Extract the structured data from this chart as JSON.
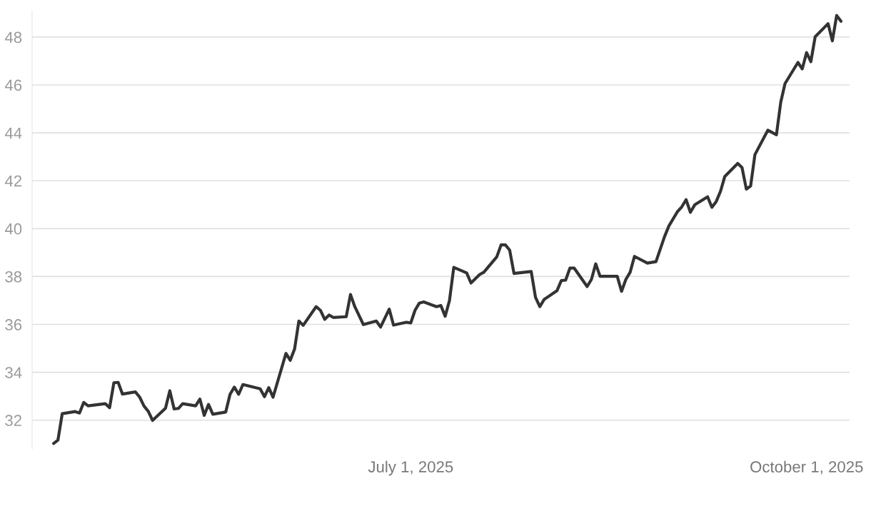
{
  "chart_data": {
    "type": "line",
    "x": [
      "2025-04-09",
      "2025-04-10",
      "2025-04-11",
      "2025-04-14",
      "2025-04-15",
      "2025-04-16",
      "2025-04-17",
      "2025-04-21",
      "2025-04-22",
      "2025-04-23",
      "2025-04-24",
      "2025-04-25",
      "2025-04-28",
      "2025-04-29",
      "2025-04-30",
      "2025-05-01",
      "2025-05-02",
      "2025-05-05",
      "2025-05-06",
      "2025-05-07",
      "2025-05-08",
      "2025-05-09",
      "2025-05-12",
      "2025-05-13",
      "2025-05-14",
      "2025-05-15",
      "2025-05-16",
      "2025-05-19",
      "2025-05-20",
      "2025-05-21",
      "2025-05-22",
      "2025-05-23",
      "2025-05-27",
      "2025-05-28",
      "2025-05-29",
      "2025-05-30",
      "2025-06-02",
      "2025-06-03",
      "2025-06-04",
      "2025-06-05",
      "2025-06-06",
      "2025-06-09",
      "2025-06-10",
      "2025-06-11",
      "2025-06-12",
      "2025-06-13",
      "2025-06-16",
      "2025-06-17",
      "2025-06-18",
      "2025-06-20",
      "2025-06-23",
      "2025-06-24",
      "2025-06-26",
      "2025-06-27",
      "2025-06-30",
      "2025-07-01",
      "2025-07-02",
      "2025-07-03",
      "2025-07-04",
      "2025-07-07",
      "2025-07-08",
      "2025-07-09",
      "2025-07-10",
      "2025-07-11",
      "2025-07-14",
      "2025-07-15",
      "2025-07-17",
      "2025-07-18",
      "2025-07-21",
      "2025-07-22",
      "2025-07-23",
      "2025-07-24",
      "2025-07-25",
      "2025-07-29",
      "2025-07-30",
      "2025-07-31",
      "2025-08-01",
      "2025-08-04",
      "2025-08-05",
      "2025-08-06",
      "2025-08-07",
      "2025-08-08",
      "2025-08-11",
      "2025-08-12",
      "2025-08-13",
      "2025-08-14",
      "2025-08-18",
      "2025-08-19",
      "2025-08-20",
      "2025-08-21",
      "2025-08-22",
      "2025-08-25",
      "2025-08-27",
      "2025-08-29",
      "2025-08-30",
      "2025-09-01",
      "2025-09-02",
      "2025-09-03",
      "2025-09-04",
      "2025-09-05",
      "2025-09-08",
      "2025-09-09",
      "2025-09-10",
      "2025-09-11",
      "2025-09-12",
      "2025-09-15",
      "2025-09-16",
      "2025-09-17",
      "2025-09-18",
      "2025-09-19",
      "2025-09-22",
      "2025-09-24",
      "2025-09-25",
      "2025-09-26",
      "2025-09-29",
      "2025-09-30",
      "2025-10-01",
      "2025-10-02",
      "2025-10-03",
      "2025-10-06",
      "2025-10-07",
      "2025-10-08",
      "2025-10-09"
    ],
    "series": [
      {
        "color": "#333333",
        "values": [
          31.03,
          31.17,
          32.27,
          32.36,
          32.3,
          32.74,
          32.6,
          32.69,
          32.52,
          33.56,
          33.58,
          33.09,
          33.18,
          32.96,
          32.59,
          32.37,
          31.99,
          32.5,
          33.23,
          32.47,
          32.49,
          32.69,
          32.6,
          32.88,
          32.2,
          32.66,
          32.25,
          32.34,
          33.08,
          33.38,
          33.08,
          33.49,
          33.31,
          32.98,
          33.36,
          32.96,
          34.79,
          34.5,
          34.97,
          36.14,
          35.96,
          36.74,
          36.59,
          36.21,
          36.39,
          36.29,
          36.32,
          37.25,
          36.74,
          35.99,
          36.14,
          35.89,
          36.64,
          35.97,
          36.09,
          36.06,
          36.59,
          36.89,
          36.94,
          36.74,
          36.79,
          36.34,
          36.99,
          38.38,
          38.15,
          37.73,
          38.08,
          38.18,
          38.82,
          39.32,
          39.32,
          39.1,
          38.13,
          38.21,
          37.13,
          36.74,
          37.04,
          37.41,
          37.83,
          37.85,
          38.35,
          38.35,
          37.58,
          37.88,
          38.53,
          38.01,
          38.01,
          37.38,
          37.88,
          38.18,
          38.84,
          38.56,
          38.62,
          39.67,
          40.11,
          40.71,
          40.91,
          41.21,
          40.68,
          40.99,
          41.33,
          40.89,
          41.13,
          41.56,
          42.18,
          42.72,
          42.55,
          41.65,
          41.78,
          43.09,
          44.11,
          43.92,
          45.28,
          46.06,
          46.94,
          46.67,
          47.35,
          46.97,
          48.01,
          48.56,
          47.84,
          48.9,
          48.66
        ]
      }
    ],
    "xlim": [
      "2025-04-04",
      "2025-10-11"
    ],
    "xticks": [
      {
        "value": "2025-07-01",
        "label": "July 1, 2025"
      },
      {
        "value": "2025-10-01",
        "label": "October 1, 2025"
      }
    ],
    "yticks": [
      32,
      34,
      36,
      38,
      40,
      42,
      44,
      46,
      48
    ],
    "ylim": [
      30.8,
      49.1
    ],
    "grid": "y",
    "marker": "none",
    "line_style": "solid"
  }
}
